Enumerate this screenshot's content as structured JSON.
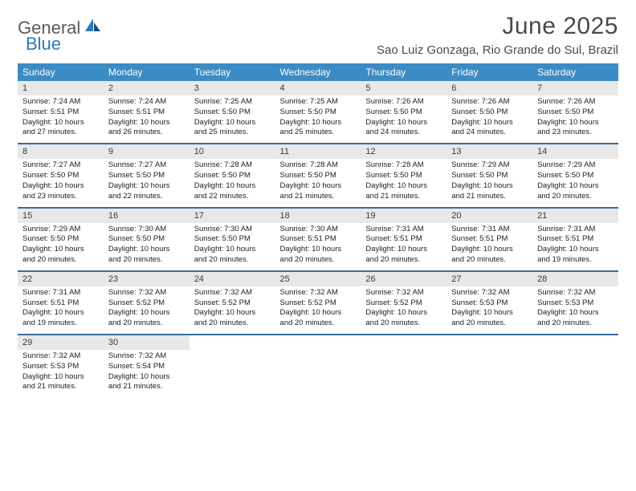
{
  "logo": {
    "part1": "General",
    "part2": "Blue"
  },
  "title": "June 2025",
  "location": "Sao Luiz Gonzaga, Rio Grande do Sul, Brazil",
  "colors": {
    "header_bg": "#3b8bc4",
    "header_text": "#ffffff",
    "separator": "#3b6c9a",
    "daynum_bg": "#e8e8e8",
    "logo_gray": "#5a5a5a",
    "logo_blue": "#2a7ab8",
    "text": "#222222"
  },
  "typography": {
    "title_fontsize": 30,
    "location_fontsize": 15,
    "dow_fontsize": 12,
    "daynum_fontsize": 11,
    "cell_fontsize": 9.5
  },
  "days_of_week": [
    "Sunday",
    "Monday",
    "Tuesday",
    "Wednesday",
    "Thursday",
    "Friday",
    "Saturday"
  ],
  "weeks": [
    [
      {
        "day": "1",
        "sunrise": "Sunrise: 7:24 AM",
        "sunset": "Sunset: 5:51 PM",
        "daylight": "Daylight: 10 hours and 27 minutes."
      },
      {
        "day": "2",
        "sunrise": "Sunrise: 7:24 AM",
        "sunset": "Sunset: 5:51 PM",
        "daylight": "Daylight: 10 hours and 26 minutes."
      },
      {
        "day": "3",
        "sunrise": "Sunrise: 7:25 AM",
        "sunset": "Sunset: 5:50 PM",
        "daylight": "Daylight: 10 hours and 25 minutes."
      },
      {
        "day": "4",
        "sunrise": "Sunrise: 7:25 AM",
        "sunset": "Sunset: 5:50 PM",
        "daylight": "Daylight: 10 hours and 25 minutes."
      },
      {
        "day": "5",
        "sunrise": "Sunrise: 7:26 AM",
        "sunset": "Sunset: 5:50 PM",
        "daylight": "Daylight: 10 hours and 24 minutes."
      },
      {
        "day": "6",
        "sunrise": "Sunrise: 7:26 AM",
        "sunset": "Sunset: 5:50 PM",
        "daylight": "Daylight: 10 hours and 24 minutes."
      },
      {
        "day": "7",
        "sunrise": "Sunrise: 7:26 AM",
        "sunset": "Sunset: 5:50 PM",
        "daylight": "Daylight: 10 hours and 23 minutes."
      }
    ],
    [
      {
        "day": "8",
        "sunrise": "Sunrise: 7:27 AM",
        "sunset": "Sunset: 5:50 PM",
        "daylight": "Daylight: 10 hours and 23 minutes."
      },
      {
        "day": "9",
        "sunrise": "Sunrise: 7:27 AM",
        "sunset": "Sunset: 5:50 PM",
        "daylight": "Daylight: 10 hours and 22 minutes."
      },
      {
        "day": "10",
        "sunrise": "Sunrise: 7:28 AM",
        "sunset": "Sunset: 5:50 PM",
        "daylight": "Daylight: 10 hours and 22 minutes."
      },
      {
        "day": "11",
        "sunrise": "Sunrise: 7:28 AM",
        "sunset": "Sunset: 5:50 PM",
        "daylight": "Daylight: 10 hours and 21 minutes."
      },
      {
        "day": "12",
        "sunrise": "Sunrise: 7:28 AM",
        "sunset": "Sunset: 5:50 PM",
        "daylight": "Daylight: 10 hours and 21 minutes."
      },
      {
        "day": "13",
        "sunrise": "Sunrise: 7:29 AM",
        "sunset": "Sunset: 5:50 PM",
        "daylight": "Daylight: 10 hours and 21 minutes."
      },
      {
        "day": "14",
        "sunrise": "Sunrise: 7:29 AM",
        "sunset": "Sunset: 5:50 PM",
        "daylight": "Daylight: 10 hours and 20 minutes."
      }
    ],
    [
      {
        "day": "15",
        "sunrise": "Sunrise: 7:29 AM",
        "sunset": "Sunset: 5:50 PM",
        "daylight": "Daylight: 10 hours and 20 minutes."
      },
      {
        "day": "16",
        "sunrise": "Sunrise: 7:30 AM",
        "sunset": "Sunset: 5:50 PM",
        "daylight": "Daylight: 10 hours and 20 minutes."
      },
      {
        "day": "17",
        "sunrise": "Sunrise: 7:30 AM",
        "sunset": "Sunset: 5:50 PM",
        "daylight": "Daylight: 10 hours and 20 minutes."
      },
      {
        "day": "18",
        "sunrise": "Sunrise: 7:30 AM",
        "sunset": "Sunset: 5:51 PM",
        "daylight": "Daylight: 10 hours and 20 minutes."
      },
      {
        "day": "19",
        "sunrise": "Sunrise: 7:31 AM",
        "sunset": "Sunset: 5:51 PM",
        "daylight": "Daylight: 10 hours and 20 minutes."
      },
      {
        "day": "20",
        "sunrise": "Sunrise: 7:31 AM",
        "sunset": "Sunset: 5:51 PM",
        "daylight": "Daylight: 10 hours and 20 minutes."
      },
      {
        "day": "21",
        "sunrise": "Sunrise: 7:31 AM",
        "sunset": "Sunset: 5:51 PM",
        "daylight": "Daylight: 10 hours and 19 minutes."
      }
    ],
    [
      {
        "day": "22",
        "sunrise": "Sunrise: 7:31 AM",
        "sunset": "Sunset: 5:51 PM",
        "daylight": "Daylight: 10 hours and 19 minutes."
      },
      {
        "day": "23",
        "sunrise": "Sunrise: 7:32 AM",
        "sunset": "Sunset: 5:52 PM",
        "daylight": "Daylight: 10 hours and 20 minutes."
      },
      {
        "day": "24",
        "sunrise": "Sunrise: 7:32 AM",
        "sunset": "Sunset: 5:52 PM",
        "daylight": "Daylight: 10 hours and 20 minutes."
      },
      {
        "day": "25",
        "sunrise": "Sunrise: 7:32 AM",
        "sunset": "Sunset: 5:52 PM",
        "daylight": "Daylight: 10 hours and 20 minutes."
      },
      {
        "day": "26",
        "sunrise": "Sunrise: 7:32 AM",
        "sunset": "Sunset: 5:52 PM",
        "daylight": "Daylight: 10 hours and 20 minutes."
      },
      {
        "day": "27",
        "sunrise": "Sunrise: 7:32 AM",
        "sunset": "Sunset: 5:53 PM",
        "daylight": "Daylight: 10 hours and 20 minutes."
      },
      {
        "day": "28",
        "sunrise": "Sunrise: 7:32 AM",
        "sunset": "Sunset: 5:53 PM",
        "daylight": "Daylight: 10 hours and 20 minutes."
      }
    ],
    [
      {
        "day": "29",
        "sunrise": "Sunrise: 7:32 AM",
        "sunset": "Sunset: 5:53 PM",
        "daylight": "Daylight: 10 hours and 21 minutes."
      },
      {
        "day": "30",
        "sunrise": "Sunrise: 7:32 AM",
        "sunset": "Sunset: 5:54 PM",
        "daylight": "Daylight: 10 hours and 21 minutes."
      },
      null,
      null,
      null,
      null,
      null
    ]
  ]
}
